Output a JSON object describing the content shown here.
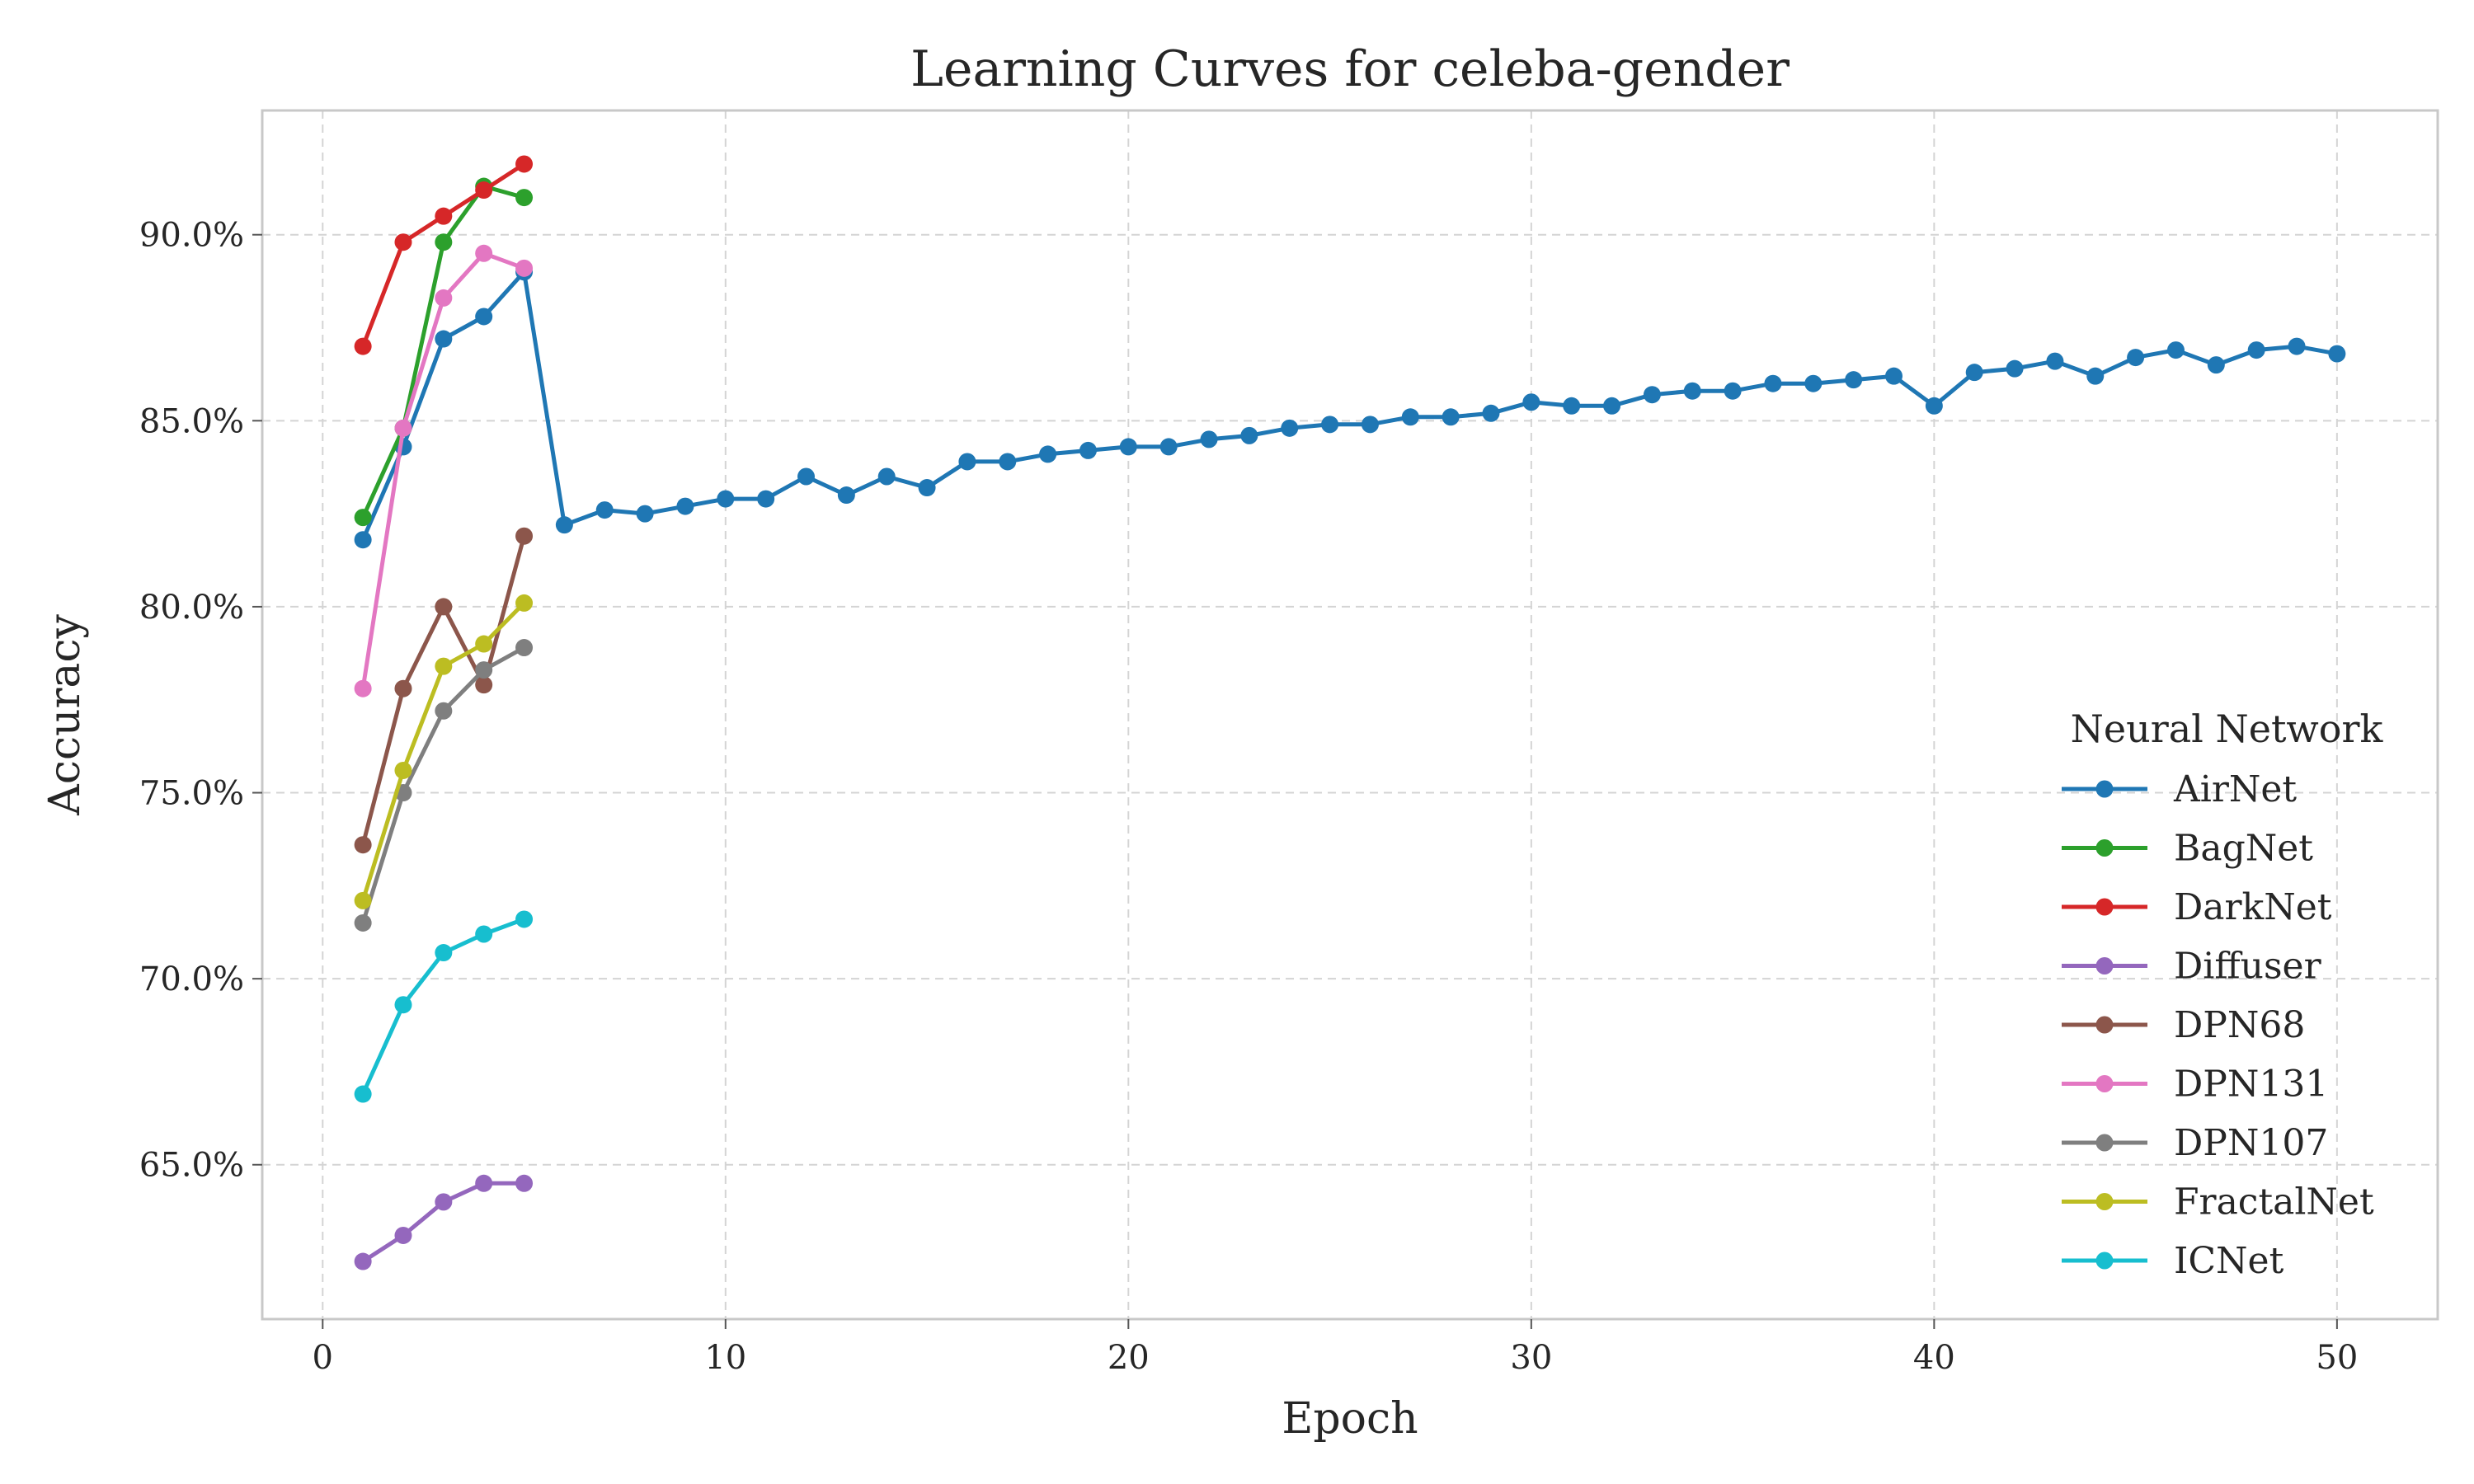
{
  "chart_data": {
    "type": "line",
    "title": "Learning Curves for celeba-gender",
    "xlabel": "Epoch",
    "ylabel": "Accuracy",
    "xlim": [
      -1.5,
      52.5
    ],
    "ylim": [
      0.6085,
      0.9334
    ],
    "xticks": [
      0,
      10,
      20,
      30,
      40,
      50
    ],
    "xtick_labels": [
      "0",
      "10",
      "20",
      "30",
      "40",
      "50"
    ],
    "yticks": [
      0.65,
      0.7,
      0.75,
      0.8,
      0.85,
      0.9
    ],
    "ytick_labels": [
      "65.0%",
      "70.0%",
      "75.0%",
      "80.0%",
      "85.0%",
      "90.0%"
    ],
    "grid": true,
    "legend": {
      "title": "Neural Network",
      "placement": "lower-right"
    },
    "series": [
      {
        "name": "AirNet",
        "color": "#1f77b4",
        "x": [
          1,
          2,
          3,
          4,
          5,
          6,
          7,
          8,
          9,
          10,
          11,
          12,
          13,
          14,
          15,
          16,
          17,
          18,
          19,
          20,
          21,
          22,
          23,
          24,
          25,
          26,
          27,
          28,
          29,
          30,
          31,
          32,
          33,
          34,
          35,
          36,
          37,
          38,
          39,
          40,
          41,
          42,
          43,
          44,
          45,
          46,
          47,
          48,
          49,
          50
        ],
        "y": [
          0.818,
          0.843,
          0.872,
          0.878,
          0.89,
          0.822,
          0.826,
          0.825,
          0.827,
          0.829,
          0.829,
          0.835,
          0.83,
          0.835,
          0.832,
          0.839,
          0.839,
          0.841,
          0.842,
          0.843,
          0.843,
          0.845,
          0.846,
          0.848,
          0.849,
          0.849,
          0.851,
          0.851,
          0.852,
          0.855,
          0.854,
          0.854,
          0.857,
          0.858,
          0.858,
          0.86,
          0.86,
          0.861,
          0.862,
          0.854,
          0.863,
          0.864,
          0.866,
          0.862,
          0.867,
          0.869,
          0.865,
          0.869,
          0.87,
          0.868
        ]
      },
      {
        "name": "BagNet",
        "color": "#2ca02c",
        "x": [
          1,
          2,
          3,
          4,
          5
        ],
        "y": [
          0.824,
          0.848,
          0.898,
          0.913,
          0.91
        ]
      },
      {
        "name": "DarkNet",
        "color": "#d62728",
        "x": [
          1,
          2,
          3,
          4,
          5
        ],
        "y": [
          0.87,
          0.898,
          0.905,
          0.912,
          0.919
        ]
      },
      {
        "name": "Diffuser",
        "color": "#9467bd",
        "x": [
          1,
          2,
          3,
          4,
          5
        ],
        "y": [
          0.624,
          0.631,
          0.64,
          0.645,
          0.645
        ]
      },
      {
        "name": "DPN68",
        "color": "#8c564b",
        "x": [
          1,
          2,
          3,
          4,
          5
        ],
        "y": [
          0.736,
          0.778,
          0.8,
          0.779,
          0.819
        ]
      },
      {
        "name": "DPN131",
        "color": "#e377c2",
        "x": [
          1,
          2,
          3,
          4,
          5
        ],
        "y": [
          0.778,
          0.848,
          0.883,
          0.895,
          0.891
        ]
      },
      {
        "name": "DPN107",
        "color": "#7f7f7f",
        "x": [
          1,
          2,
          3,
          4,
          5
        ],
        "y": [
          0.715,
          0.75,
          0.772,
          0.783,
          0.789
        ]
      },
      {
        "name": "FractalNet",
        "color": "#bcbd22",
        "x": [
          1,
          2,
          3,
          4,
          5
        ],
        "y": [
          0.721,
          0.756,
          0.784,
          0.79,
          0.801
        ]
      },
      {
        "name": "ICNet",
        "color": "#17becf",
        "x": [
          1,
          2,
          3,
          4,
          5
        ],
        "y": [
          0.669,
          0.693,
          0.707,
          0.712,
          0.716
        ]
      }
    ]
  }
}
